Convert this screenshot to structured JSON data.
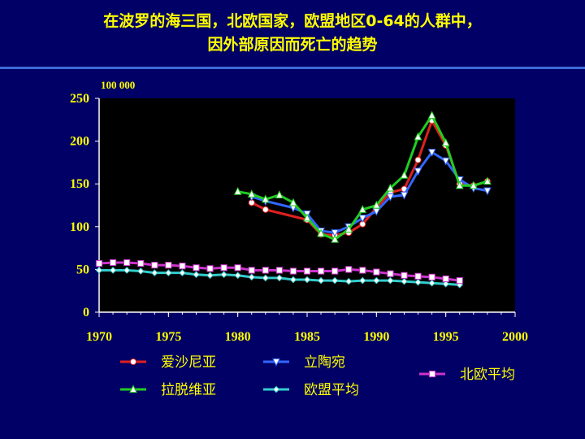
{
  "title_line1": "在波罗的海三国，北欧国家，欧盟地区0-64的人群中，",
  "title_line2": "因外部原因而死亡的趋势",
  "chart_data": {
    "type": "line",
    "title": "在波罗的海三国，北欧国家，欧盟地区0-64的人群中，因外部原因而死亡的趋势",
    "unit_label": "100 000",
    "xlim": [
      1970,
      2000
    ],
    "ylim": [
      0,
      250
    ],
    "x_ticks": [
      1970,
      1975,
      1980,
      1985,
      1990,
      1995,
      2000
    ],
    "y_ticks": [
      0,
      50,
      100,
      150,
      200,
      250
    ],
    "grid": false,
    "legend_position": "bottom",
    "series": [
      {
        "name": "爱沙尼亚",
        "color": "#e02020",
        "marker": "circle",
        "x": [
          1981,
          1982,
          1985,
          1986,
          1987,
          1988,
          1989,
          1990,
          1991,
          1992,
          1993,
          1994,
          1995,
          1996,
          1997,
          1998
        ],
        "y": [
          128,
          120,
          108,
          91,
          90,
          93,
          103,
          122,
          140,
          144,
          178,
          224,
          195,
          150,
          148,
          153
        ]
      },
      {
        "name": "立陶宛",
        "color": "#3366ff",
        "marker": "triangle-down",
        "x": [
          1981,
          1982,
          1984,
          1985,
          1986,
          1987,
          1988,
          1989,
          1990,
          1991,
          1992,
          1993,
          1994,
          1995,
          1996,
          1997,
          1998
        ],
        "y": [
          135,
          130,
          122,
          115,
          95,
          93,
          100,
          110,
          118,
          135,
          137,
          165,
          187,
          177,
          155,
          145,
          142
        ]
      },
      {
        "name": "拉脱维亚",
        "color": "#22cc22",
        "marker": "triangle-up",
        "x": [
          1980,
          1981,
          1982,
          1983,
          1984,
          1985,
          1986,
          1987,
          1988,
          1989,
          1990,
          1991,
          1992,
          1993,
          1994,
          1995,
          1996,
          1997,
          1998
        ],
        "y": [
          141,
          138,
          132,
          137,
          128,
          110,
          92,
          85,
          97,
          120,
          125,
          145,
          160,
          205,
          230,
          198,
          148,
          148,
          153
        ]
      },
      {
        "name": "欧盟平均",
        "color": "#33cccc",
        "marker": "diamond",
        "x": [
          1970,
          1971,
          1972,
          1973,
          1974,
          1975,
          1976,
          1977,
          1978,
          1979,
          1980,
          1981,
          1982,
          1983,
          1984,
          1985,
          1986,
          1987,
          1988,
          1989,
          1990,
          1991,
          1992,
          1993,
          1994,
          1995,
          1996
        ],
        "y": [
          49,
          49,
          49,
          48,
          46,
          46,
          46,
          44,
          43,
          44,
          43,
          41,
          40,
          40,
          38,
          38,
          37,
          37,
          36,
          37,
          37,
          37,
          36,
          35,
          34,
          33,
          32
        ]
      },
      {
        "name": "北欧平均",
        "color": "#cc33cc",
        "marker": "square",
        "x": [
          1970,
          1971,
          1972,
          1973,
          1974,
          1975,
          1976,
          1977,
          1978,
          1979,
          1980,
          1981,
          1982,
          1983,
          1984,
          1985,
          1986,
          1987,
          1988,
          1989,
          1990,
          1991,
          1992,
          1993,
          1994,
          1995,
          1996
        ],
        "y": [
          57,
          58,
          58,
          57,
          55,
          55,
          54,
          52,
          51,
          52,
          52,
          49,
          49,
          49,
          48,
          48,
          48,
          48,
          50,
          49,
          47,
          45,
          43,
          42,
          41,
          39,
          37
        ]
      }
    ]
  }
}
